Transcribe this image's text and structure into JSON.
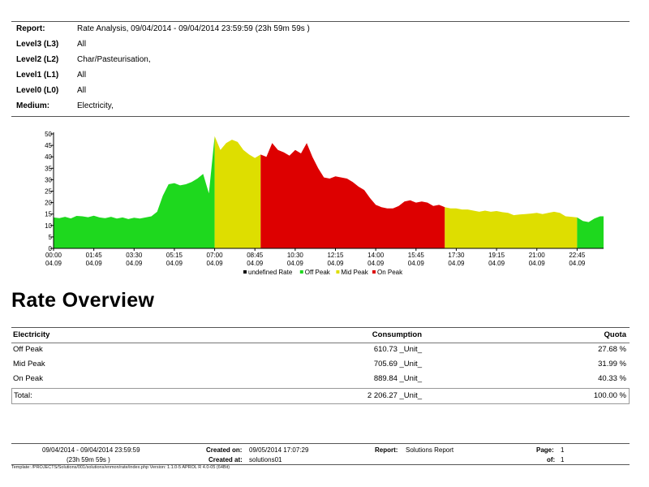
{
  "report": {
    "rows": [
      {
        "key": "Report:",
        "value": "Rate Analysis, 09/04/2014 - 09/04/2014 23:59:59 (23h 59m 59s )"
      },
      {
        "key": "Level3 (L3)",
        "value": "All"
      },
      {
        "key": "Level2 (L2)",
        "value": "Char/Pasteurisation,"
      },
      {
        "key": "Level1 (L1)",
        "value": "All"
      },
      {
        "key": "Level0 (L0)",
        "value": "All"
      },
      {
        "key": "Medium:",
        "value": "Electricity,"
      }
    ]
  },
  "chart_data": {
    "type": "area",
    "x_ticks": [
      "00:00",
      "01:45",
      "03:30",
      "05:15",
      "07:00",
      "08:45",
      "10:30",
      "12:15",
      "14:00",
      "15:45",
      "17:30",
      "19:15",
      "21:00",
      "22:45"
    ],
    "x_tick_date": "04.09",
    "ylim": [
      0,
      50
    ],
    "y_ticks": [
      0,
      5,
      10,
      15,
      20,
      25,
      30,
      35,
      40,
      45,
      50
    ],
    "grid": false,
    "legend_position": "bottom",
    "legend": [
      {
        "name": "undefined Rate",
        "color": "#000000"
      },
      {
        "name": "Off Peak",
        "color": "#1ed81e"
      },
      {
        "name": "Mid Peak",
        "color": "#dede00"
      },
      {
        "name": "On Peak",
        "color": "#dd0000"
      }
    ],
    "x_hours": [
      0,
      0.25,
      0.5,
      0.75,
      1.0,
      1.25,
      1.5,
      1.75,
      2.0,
      2.25,
      2.5,
      2.75,
      3.0,
      3.25,
      3.5,
      3.75,
      4.0,
      4.25,
      4.5,
      4.75,
      5.0,
      5.25,
      5.5,
      5.75,
      6.0,
      6.25,
      6.5,
      6.75,
      7.0,
      7.25,
      7.5,
      7.75,
      8.0,
      8.25,
      8.5,
      8.75,
      9.0,
      9.25,
      9.5,
      9.75,
      10.0,
      10.25,
      10.5,
      10.75,
      11.0,
      11.25,
      11.5,
      11.75,
      12.0,
      12.25,
      12.5,
      12.75,
      13.0,
      13.25,
      13.5,
      13.75,
      14.0,
      14.25,
      14.5,
      14.75,
      15.0,
      15.25,
      15.5,
      15.75,
      16.0,
      16.25,
      16.5,
      16.75,
      17.0,
      17.25,
      17.5,
      17.75,
      18.0,
      18.25,
      18.5,
      18.75,
      19.0,
      19.25,
      19.5,
      19.75,
      20.0,
      20.25,
      20.5,
      20.75,
      21.0,
      21.25,
      21.5,
      21.75,
      22.0,
      22.25,
      22.5,
      22.75,
      23.0,
      23.25,
      23.5,
      23.75
    ],
    "values": [
      13.5,
      13.2,
      13.8,
      13.1,
      14.2,
      14.0,
      13.6,
      14.3,
      13.5,
      13.2,
      13.8,
      13.0,
      13.5,
      12.8,
      13.4,
      13.0,
      13.5,
      14.0,
      16.0,
      23.0,
      28.0,
      28.5,
      27.5,
      28.0,
      29.0,
      30.5,
      32.5,
      24.0,
      49.0,
      43.0,
      46.0,
      47.5,
      46.5,
      43.0,
      41.0,
      39.5,
      41.0,
      40.0,
      46.0,
      43.0,
      42.0,
      40.5,
      43.0,
      41.5,
      46.0,
      40.0,
      35.0,
      31.0,
      30.5,
      31.5,
      31.0,
      30.5,
      29.0,
      27.0,
      25.5,
      22.0,
      19.0,
      18.0,
      17.5,
      17.5,
      18.5,
      20.5,
      21.0,
      20.0,
      20.5,
      20.0,
      18.5,
      19.0,
      18.0,
      17.5,
      17.5,
      17.0,
      17.0,
      16.5,
      16.0,
      16.5,
      16.0,
      16.3,
      15.8,
      15.5,
      14.5,
      14.8,
      15.0,
      15.2,
      15.5,
      15.0,
      15.5,
      16.0,
      15.5,
      14.0,
      13.8,
      13.5,
      12.0,
      11.5,
      13.0,
      14.0
    ],
    "rates": [
      "Off Peak",
      "Off Peak",
      "Off Peak",
      "Off Peak",
      "Off Peak",
      "Off Peak",
      "Off Peak",
      "Off Peak",
      "Off Peak",
      "Off Peak",
      "Off Peak",
      "Off Peak",
      "Off Peak",
      "Off Peak",
      "Off Peak",
      "Off Peak",
      "Off Peak",
      "Off Peak",
      "Off Peak",
      "Off Peak",
      "Off Peak",
      "Off Peak",
      "Off Peak",
      "Off Peak",
      "Off Peak",
      "Off Peak",
      "Off Peak",
      "Off Peak",
      "Mid Peak",
      "Mid Peak",
      "Mid Peak",
      "Mid Peak",
      "Mid Peak",
      "Mid Peak",
      "Mid Peak",
      "Mid Peak",
      "On Peak",
      "On Peak",
      "On Peak",
      "On Peak",
      "On Peak",
      "On Peak",
      "On Peak",
      "On Peak",
      "On Peak",
      "On Peak",
      "On Peak",
      "On Peak",
      "On Peak",
      "On Peak",
      "On Peak",
      "On Peak",
      "On Peak",
      "On Peak",
      "On Peak",
      "On Peak",
      "On Peak",
      "On Peak",
      "On Peak",
      "On Peak",
      "On Peak",
      "On Peak",
      "On Peak",
      "On Peak",
      "On Peak",
      "On Peak",
      "On Peak",
      "On Peak",
      "Mid Peak",
      "Mid Peak",
      "Mid Peak",
      "Mid Peak",
      "Mid Peak",
      "Mid Peak",
      "Mid Peak",
      "Mid Peak",
      "Mid Peak",
      "Mid Peak",
      "Mid Peak",
      "Mid Peak",
      "Mid Peak",
      "Mid Peak",
      "Mid Peak",
      "Mid Peak",
      "Mid Peak",
      "Mid Peak",
      "Mid Peak",
      "Mid Peak",
      "Mid Peak",
      "Mid Peak",
      "Mid Peak",
      "Off Peak",
      "Off Peak",
      "Off Peak",
      "Off Peak",
      "Off Peak"
    ]
  },
  "overview": {
    "title": "Rate Overview",
    "headers": [
      "Electricity",
      "Consumption",
      "Quota"
    ],
    "rows": [
      [
        "Off Peak",
        "610.73 _Unit_",
        "27.68 %"
      ],
      [
        "Mid Peak",
        "705.69 _Unit_",
        "31.99 %"
      ],
      [
        "On Peak",
        "889.84 _Unit_",
        "40.33 %"
      ]
    ],
    "total": [
      "Total:",
      "2 206.27 _Unit_",
      "100.00 %"
    ]
  },
  "footer": {
    "period": "09/04/2014 - 09/04/2014 23:59:59",
    "duration": "(23h 59m 59s )",
    "created_on_label": "Created on:",
    "created_on": "09/05/2014 17:07:29",
    "created_at_label": "Created at:",
    "created_at": "solutions01",
    "report_label": "Report:",
    "report": "Solutions Report",
    "page_label": "Page:",
    "page": "1",
    "of_label": "of:",
    "of": "1",
    "template": "Template: /PROJECTS/Solutions/001/solutions/enmon/rate/index.php Version: 1.1.0-5 APROL R 4.0-05 (64Bit)"
  }
}
